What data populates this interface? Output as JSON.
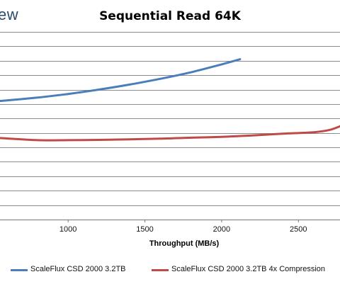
{
  "brand": {
    "text": "ew"
  },
  "chart_data": {
    "type": "line",
    "title": "Sequential Read 64K",
    "xlabel": "Throughput (MB/s)",
    "ylabel": "",
    "x_ticks": [
      "1000",
      "1500",
      "2000",
      "2500"
    ],
    "x_tick_values": [
      1000,
      1500,
      2000,
      2500
    ],
    "x_partial_tick_label": "0",
    "xlim": [
      547,
      2780
    ],
    "ylim": [
      0,
      13
    ],
    "grid": "horizontal",
    "legend_position": "bottom",
    "series": [
      {
        "name": "ScaleFlux CSD 2000 3.2TB",
        "color": "#4a7ebb",
        "points": [
          [
            547,
            8.2
          ],
          [
            800,
            8.45
          ],
          [
            1000,
            8.7
          ],
          [
            1200,
            9.0
          ],
          [
            1400,
            9.35
          ],
          [
            1600,
            9.75
          ],
          [
            1800,
            10.2
          ],
          [
            2000,
            10.75
          ],
          [
            2120,
            11.1
          ]
        ]
      },
      {
        "name": "ScaleFlux CSD 2000 3.2TB 4x Compression",
        "color": "#be4b48",
        "points": [
          [
            547,
            5.65
          ],
          [
            800,
            5.5
          ],
          [
            1000,
            5.5
          ],
          [
            1200,
            5.52
          ],
          [
            1400,
            5.56
          ],
          [
            1600,
            5.6
          ],
          [
            1800,
            5.67
          ],
          [
            2000,
            5.73
          ],
          [
            2200,
            5.83
          ],
          [
            2400,
            5.95
          ],
          [
            2600,
            6.05
          ],
          [
            2700,
            6.2
          ],
          [
            2780,
            6.5
          ]
        ]
      }
    ]
  }
}
